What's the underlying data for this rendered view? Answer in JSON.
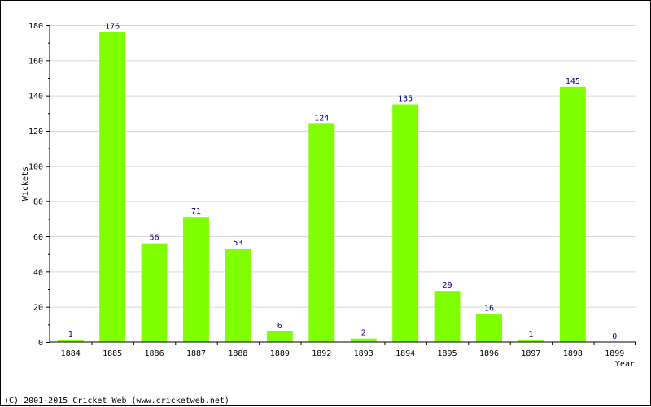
{
  "chart_data": {
    "type": "bar",
    "categories": [
      "1884",
      "1885",
      "1886",
      "1887",
      "1888",
      "1889",
      "1892",
      "1893",
      "1894",
      "1895",
      "1896",
      "1897",
      "1898",
      "1899"
    ],
    "values": [
      1,
      176,
      56,
      71,
      53,
      6,
      124,
      2,
      135,
      29,
      16,
      1,
      145,
      0
    ],
    "xlabel": "Year",
    "ylabel": "Wickets",
    "ylim": [
      0,
      180
    ],
    "yticks": [
      0,
      20,
      40,
      60,
      80,
      100,
      120,
      140,
      160,
      180
    ],
    "grid": true,
    "data_labels": true,
    "bar_color": "#80ff00",
    "label_color": "#000080",
    "grid_color": "#d8d8d8"
  },
  "footer": {
    "copyright": "(C) 2001-2015 Cricket Web (www.cricketweb.net)"
  }
}
